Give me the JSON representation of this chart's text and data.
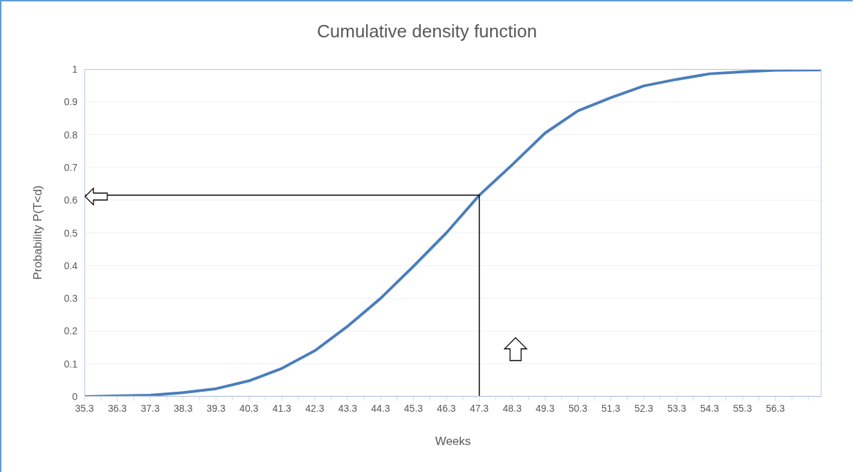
{
  "chart_data": {
    "type": "line",
    "title": "Cumulative density function",
    "xlabel": "Weeks",
    "ylabel": "Probability P(T<d)",
    "series": [
      {
        "color": "#4a7ebb",
        "x": [
          35.3,
          36.3,
          37.3,
          38.3,
          39.3,
          40.3,
          41.3,
          42.3,
          43.3,
          44.3,
          45.3,
          46.3,
          47.3,
          48.3,
          49.3,
          50.3,
          51.3,
          52.3,
          53.3,
          54.3,
          55.3,
          56.3,
          57.7
        ],
        "values": [
          0,
          0.002,
          0.004,
          0.012,
          0.024,
          0.048,
          0.086,
          0.14,
          0.215,
          0.3,
          0.398,
          0.5,
          0.615,
          0.708,
          0.805,
          0.873,
          0.913,
          0.949,
          0.969,
          0.986,
          0.992,
          0.997,
          0.998
        ]
      },
      {
        "color": "#000000",
        "x": [
          35.3,
          47.3,
          47.3
        ],
        "values": [
          0.615,
          0.615,
          0
        ]
      }
    ],
    "xlim": [
      35.3,
      57.7
    ],
    "xticks": [
      35.3,
      {
        "value": 35.8,
        "label": null
      },
      36.3,
      {
        "value": 36.8,
        "label": null
      },
      37.3,
      {
        "value": 37.8,
        "label": null
      },
      38.3,
      {
        "value": 38.8,
        "label": null
      },
      39.3,
      {
        "value": 39.8,
        "label": null
      },
      40.3,
      {
        "value": 40.8,
        "label": null
      },
      41.3,
      {
        "value": 41.8,
        "label": null
      },
      42.3,
      {
        "value": 42.8,
        "label": null
      },
      43.3,
      {
        "value": 43.8,
        "label": null
      },
      44.3,
      {
        "value": 44.8,
        "label": null
      },
      45.3,
      {
        "value": 45.8,
        "label": null
      },
      46.3,
      {
        "value": 46.8,
        "label": null
      },
      47.3,
      {
        "value": 47.8,
        "label": null
      },
      48.3,
      {
        "value": 48.8,
        "label": null
      },
      49.3,
      {
        "value": 49.8,
        "label": null
      },
      50.3,
      {
        "value": 50.8,
        "label": null
      },
      51.3,
      {
        "value": 51.8,
        "label": null
      },
      52.3,
      {
        "value": 52.8,
        "label": null
      },
      53.3,
      {
        "value": 53.8,
        "label": null
      },
      54.3,
      {
        "value": 54.8,
        "label": null
      },
      55.3,
      {
        "value": 55.8,
        "label": null
      },
      56.3,
      {
        "value": 56.8,
        "label": null
      },
      {
        "value": 57.3,
        "label": null
      }
    ],
    "ylim": [
      0,
      1
    ],
    "yticks": [
      0,
      0.1,
      0.2,
      0.3,
      0.4,
      0.5,
      0.6,
      0.7,
      0.8,
      0.9,
      1
    ],
    "grid": "y"
  }
}
